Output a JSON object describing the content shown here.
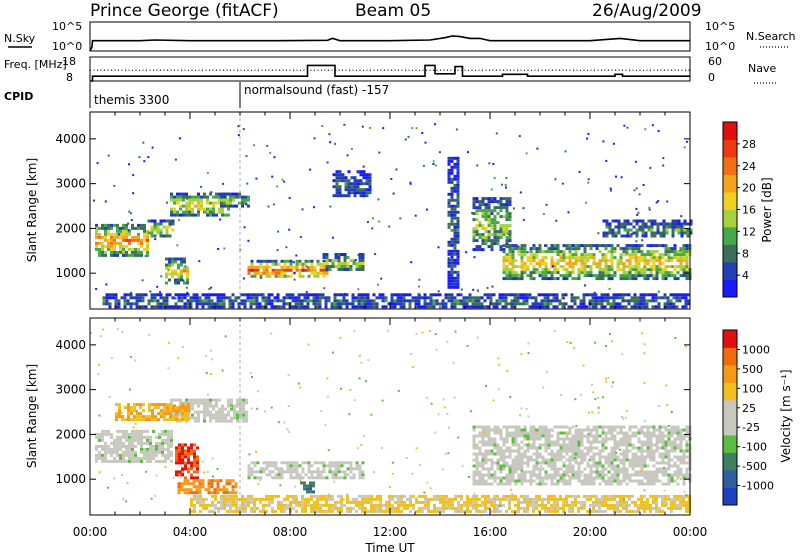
{
  "header": {
    "station": "Prince George (fitACF)",
    "beam": "Beam 05",
    "date": "26/Aug/2009"
  },
  "chart_data": [
    {
      "panel": "noise",
      "type": "line",
      "left_axis": {
        "label": "N.Sky",
        "ticks": [
          "10^5",
          "10^0"
        ]
      },
      "right_axis": {
        "label": "N.Search",
        "ticks": [
          "10^5",
          "10^0"
        ]
      },
      "series": [
        {
          "style": "solid",
          "x": [
            0.0,
            0.08,
            0.1,
            2.0,
            2.6,
            4.0,
            6.0,
            7.5,
            9.5,
            9.7,
            10.0,
            12.0,
            13.6,
            14.2,
            14.5,
            14.8,
            15.2,
            15.6,
            16.0,
            18.0,
            20.0,
            21.2,
            22.0,
            24.0
          ],
          "y": [
            1,
            5,
            60,
            60,
            80,
            60,
            60,
            60,
            70,
            150,
            60,
            60,
            80,
            200,
            400,
            300,
            150,
            150,
            60,
            60,
            60,
            150,
            60,
            60
          ]
        }
      ]
    },
    {
      "panel": "frequency",
      "type": "line",
      "left_axis": {
        "label": "Freq. [MHz]",
        "ticks": [
          18,
          8
        ]
      },
      "right_axis": {
        "label": "Nave",
        "ticks": [
          60,
          0
        ]
      },
      "series": [
        {
          "style": "solid",
          "x": [
            0.0,
            0.1,
            0.1,
            8.7,
            8.7,
            9.8,
            9.8,
            13.4,
            13.4,
            13.8,
            13.8,
            14.6,
            14.6,
            14.9,
            14.9,
            16.5,
            16.5,
            17.5,
            17.5,
            17.8,
            17.8,
            21.0,
            21.0,
            21.3,
            21.3,
            24.0
          ],
          "y": [
            8,
            8,
            10,
            10,
            14.5,
            14.5,
            10,
            10,
            14.5,
            14.5,
            11,
            11,
            14,
            14,
            10,
            10,
            10.8,
            10.8,
            10,
            10,
            10,
            10,
            10.8,
            10.8,
            10,
            10
          ]
        },
        {
          "style": "dotted",
          "x": [
            0.0,
            24.0
          ],
          "y": [
            12.5,
            12.5
          ]
        }
      ]
    },
    {
      "panel": "cpid",
      "label": "CPID",
      "segments": [
        {
          "start": 0.0,
          "name": "themis 3300"
        },
        {
          "start": 6.0,
          "name": "normalsound (fast) -157"
        }
      ]
    },
    {
      "panel": "power",
      "type": "heatmap",
      "xlabel": "",
      "ylabel": "Slant Range [km]",
      "xlim": [
        0,
        24
      ],
      "ylim": [
        200,
        4600
      ],
      "yticks": [
        1000,
        2000,
        3000,
        4000
      ],
      "colorbar": {
        "label": "Power [dB]",
        "ticks": [
          28,
          24,
          20,
          16,
          12,
          8,
          4
        ],
        "colors": [
          "#1a1aff",
          "#233fb4",
          "#3c6f5a",
          "#48a848",
          "#a6d23c",
          "#f0d020",
          "#f5a318",
          "#f36f14",
          "#ee3a10",
          "#e01010"
        ]
      },
      "bands": [
        {
          "x0": 0.2,
          "x1": 2.3,
          "y0": 1400,
          "y1": 2100,
          "level": 0.72
        },
        {
          "x0": 2.3,
          "x1": 3.3,
          "y0": 1800,
          "y1": 2200,
          "level": 0.55
        },
        {
          "x0": 3.2,
          "x1": 5.5,
          "y0": 2300,
          "y1": 2800,
          "level": 0.55
        },
        {
          "x0": 5.2,
          "x1": 6.3,
          "y0": 2500,
          "y1": 2800,
          "level": 0.45
        },
        {
          "x0": 3.0,
          "x1": 3.9,
          "y0": 800,
          "y1": 1350,
          "level": 0.6
        },
        {
          "x0": 6.3,
          "x1": 9.5,
          "y0": 900,
          "y1": 1300,
          "level": 0.8
        },
        {
          "x0": 9.3,
          "x1": 10.9,
          "y0": 1050,
          "y1": 1450,
          "level": 0.45
        },
        {
          "x0": 9.7,
          "x1": 11.2,
          "y0": 2700,
          "y1": 3300,
          "level": 0.2
        },
        {
          "x0": 15.3,
          "x1": 16.8,
          "y0": 1500,
          "y1": 2700,
          "level": 0.45
        },
        {
          "x0": 16.5,
          "x1": 24.0,
          "y0": 900,
          "y1": 1650,
          "level": 0.62
        },
        {
          "x0": 20.5,
          "x1": 24.0,
          "y0": 1800,
          "y1": 2200,
          "level": 0.3
        },
        {
          "x0": 0.5,
          "x1": 24.0,
          "y0": 250,
          "y1": 550,
          "level": 0.25
        },
        {
          "x0": 14.3,
          "x1": 14.7,
          "y0": 700,
          "y1": 3600,
          "level": 0.2
        }
      ]
    },
    {
      "panel": "velocity",
      "type": "heatmap",
      "xlabel": "Time UT",
      "ylabel": "Slant Range [km]",
      "xlim": [
        0,
        24
      ],
      "ylim": [
        200,
        4600
      ],
      "yticks": [
        1000,
        2000,
        3000,
        4000
      ],
      "xticks": [
        "00:00",
        "04:00",
        "08:00",
        "12:00",
        "16:00",
        "20:00",
        "00:00"
      ],
      "colorbar": {
        "label": "Velocity [m s⁻¹]",
        "ticks": [
          1000,
          500,
          100,
          25,
          -25,
          -100,
          -500,
          -1000
        ],
        "colors": [
          "#2040c0",
          "#2f5f9e",
          "#3c8060",
          "#5abf40",
          "#c8c8c0",
          "#c8c8c0",
          "#f0c020",
          "#f59a18",
          "#f06a10",
          "#e01010"
        ]
      },
      "bands": [
        {
          "x0": 0.2,
          "x1": 3.3,
          "y0": 1400,
          "y1": 2100,
          "level": 0.45
        },
        {
          "x0": 3.2,
          "x1": 6.3,
          "y0": 2300,
          "y1": 2800,
          "level": 0.45
        },
        {
          "x0": 3.4,
          "x1": 4.3,
          "y0": 1000,
          "y1": 1800,
          "level": 0.9
        },
        {
          "x0": 3.5,
          "x1": 5.8,
          "y0": 700,
          "y1": 1000,
          "level": 0.78
        },
        {
          "x0": 6.3,
          "x1": 10.9,
          "y0": 1000,
          "y1": 1400,
          "level": 0.45
        },
        {
          "x0": 8.4,
          "x1": 8.9,
          "y0": 700,
          "y1": 950,
          "level": 0.2
        },
        {
          "x0": 15.3,
          "x1": 24.0,
          "y0": 900,
          "y1": 2200,
          "level": 0.45
        },
        {
          "x0": 4.0,
          "x1": 24.0,
          "y0": 250,
          "y1": 650,
          "level": 0.62
        },
        {
          "x0": 1.0,
          "x1": 4.0,
          "y0": 2300,
          "y1": 2700,
          "level": 0.7
        }
      ]
    }
  ]
}
